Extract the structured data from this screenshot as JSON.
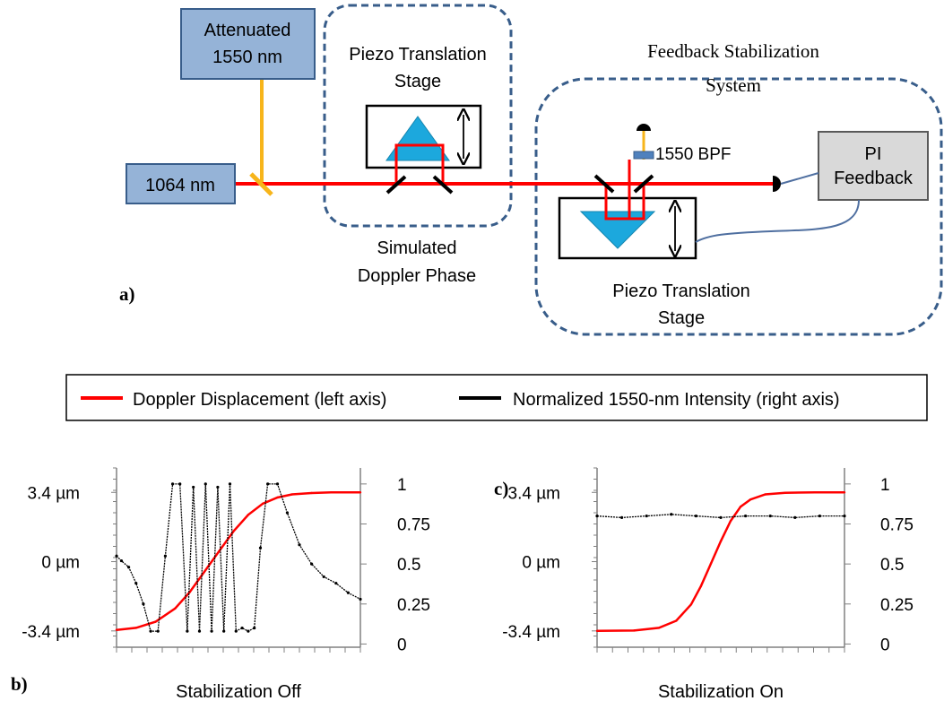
{
  "setup": {
    "attenuated_label": [
      "Attenuated",
      "1550 nm"
    ],
    "source_label": "1064 nm",
    "piezo_left_label": [
      "Piezo Translation",
      "Stage"
    ],
    "feedback_title": [
      "Feedback Stabilization",
      "System"
    ],
    "bpf_label": "1550 BPF",
    "pi_label": [
      "PI",
      "Feedback"
    ],
    "piezo_right_label": [
      "Piezo Translation",
      "Stage"
    ],
    "doppler_label": [
      "Simulated",
      "Doppler Phase"
    ],
    "panel_a_label": "a)",
    "colors": {
      "box_fill": "#95b3d7",
      "box_stroke": "#385d8a",
      "pi_fill": "#d9d9d9",
      "beam": "#ff0000",
      "yellow_beam": "#f7b51b",
      "prism": "#1ca8dd",
      "dashed": "#385d8a",
      "cable": "#4f6fa0"
    }
  },
  "legend": {
    "red_label": "Doppler Displacement (left axis)",
    "black_label": "Normalized 1550-nm Intensity (right axis)"
  },
  "panel_b_label": "b)",
  "panel_c_label": "c)",
  "chart_data": [
    {
      "type": "line",
      "xlabel": "Stabilization Off",
      "left_ticks": [
        "3.4 µm",
        "0 µm",
        "-3.4 µm"
      ],
      "left_tick_values": [
        3.4,
        0,
        -3.4
      ],
      "left_ylim": [
        -4.2,
        4.6
      ],
      "right_ticks": [
        "1",
        "0.75",
        "0.5",
        "0.25",
        "0"
      ],
      "right_tick_values": [
        1,
        0.75,
        0.5,
        0.25,
        0
      ],
      "right_ylim": [
        -0.02,
        1.1
      ],
      "x_minor_ticks": 16,
      "series": [
        {
          "name": "Doppler Displacement (left axis)",
          "color": "#ff0000",
          "axis": "left",
          "x": [
            0,
            0.08,
            0.16,
            0.24,
            0.3,
            0.36,
            0.42,
            0.48,
            0.54,
            0.6,
            0.66,
            0.72,
            0.8,
            0.88,
            1.0
          ],
          "y": [
            -3.35,
            -3.25,
            -2.95,
            -2.3,
            -1.5,
            -0.5,
            0.5,
            1.5,
            2.3,
            2.85,
            3.15,
            3.3,
            3.37,
            3.4,
            3.4
          ]
        },
        {
          "name": "Normalized 1550-nm Intensity (right axis)",
          "color": "#000000",
          "axis": "right",
          "x": [
            0,
            0.02,
            0.05,
            0.08,
            0.11,
            0.14,
            0.17,
            0.2,
            0.23,
            0.26,
            0.29,
            0.315,
            0.34,
            0.365,
            0.39,
            0.415,
            0.44,
            0.465,
            0.49,
            0.515,
            0.54,
            0.565,
            0.59,
            0.62,
            0.66,
            0.7,
            0.75,
            0.8,
            0.85,
            0.9,
            0.95,
            1.0
          ],
          "y": [
            0.55,
            0.52,
            0.48,
            0.38,
            0.25,
            0.08,
            0.08,
            0.55,
            1.0,
            1.0,
            0.08,
            0.98,
            0.08,
            1.0,
            0.08,
            0.98,
            0.08,
            1.0,
            0.08,
            0.1,
            0.08,
            0.1,
            0.6,
            1.0,
            1.0,
            0.82,
            0.62,
            0.5,
            0.42,
            0.38,
            0.32,
            0.28
          ]
        }
      ]
    },
    {
      "type": "line",
      "xlabel": "Stabilization On",
      "left_ticks": [
        "3.4 µm",
        "0 µm",
        "-3.4 µm"
      ],
      "left_tick_values": [
        3.4,
        0,
        -3.4
      ],
      "left_ylim": [
        -4.2,
        4.6
      ],
      "right_ticks": [
        "1",
        "0.75",
        "0.5",
        "0.25",
        "0"
      ],
      "right_tick_values": [
        1,
        0.75,
        0.5,
        0.25,
        0
      ],
      "right_ylim": [
        -0.02,
        1.1
      ],
      "x_minor_ticks": 16,
      "series": [
        {
          "name": "Doppler Displacement (left axis)",
          "color": "#ff0000",
          "axis": "left",
          "x": [
            0,
            0.15,
            0.25,
            0.32,
            0.38,
            0.42,
            0.46,
            0.5,
            0.54,
            0.58,
            0.62,
            0.68,
            0.76,
            0.88,
            1.0
          ],
          "y": [
            -3.4,
            -3.38,
            -3.25,
            -2.9,
            -2.1,
            -1.2,
            -0.1,
            1.0,
            2.0,
            2.7,
            3.05,
            3.3,
            3.38,
            3.4,
            3.4
          ]
        },
        {
          "name": "Normalized 1550-nm Intensity (right axis)",
          "color": "#000000",
          "axis": "right",
          "x": [
            0,
            0.1,
            0.2,
            0.3,
            0.4,
            0.5,
            0.6,
            0.7,
            0.8,
            0.9,
            1.0
          ],
          "y": [
            0.8,
            0.79,
            0.8,
            0.81,
            0.8,
            0.79,
            0.8,
            0.8,
            0.79,
            0.8,
            0.8
          ]
        }
      ]
    }
  ]
}
